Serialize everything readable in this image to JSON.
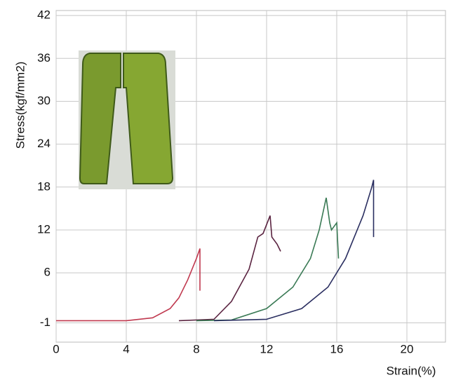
{
  "chart_data": {
    "type": "line",
    "xlabel": "Strain(%)",
    "ylabel": "Stress(kgf/mm2)",
    "xlim": [
      0,
      22.2
    ],
    "ylim": [
      -3.7,
      42.7
    ],
    "xticks": [
      0,
      4,
      8,
      12,
      16,
      20
    ],
    "yticks": [
      -1,
      6,
      12,
      18,
      24,
      30,
      36,
      42
    ],
    "grid": true,
    "series": [
      {
        "color": "#c0394f",
        "x": [
          0,
          4,
          5.5,
          6.5,
          7,
          7.5,
          8,
          8.2,
          8.2
        ],
        "values": [
          -0.7,
          -0.7,
          -0.3,
          1,
          2.5,
          5,
          8,
          9.4,
          3.5
        ]
      },
      {
        "color": "#5a2340",
        "x": [
          7,
          9,
          10,
          11,
          11.5,
          11.8,
          12.2,
          12.3,
          12.6,
          12.8
        ],
        "values": [
          -0.7,
          -0.5,
          2,
          6.5,
          11,
          11.5,
          14,
          11,
          10,
          9
        ]
      },
      {
        "color": "#3a7a55",
        "x": [
          8,
          10,
          12,
          13.5,
          14.5,
          15,
          15.4,
          15.6,
          15.7,
          16,
          16.1
        ],
        "values": [
          -0.7,
          -0.6,
          1,
          4,
          8,
          12,
          16.5,
          13,
          12,
          13,
          8
        ]
      },
      {
        "color": "#2a2e60",
        "x": [
          9,
          12,
          14,
          15.5,
          16.5,
          17.5,
          18,
          18.1,
          18.1
        ],
        "values": [
          -0.7,
          -0.5,
          1,
          4,
          8,
          14,
          18,
          19,
          11
        ]
      }
    ]
  }
}
